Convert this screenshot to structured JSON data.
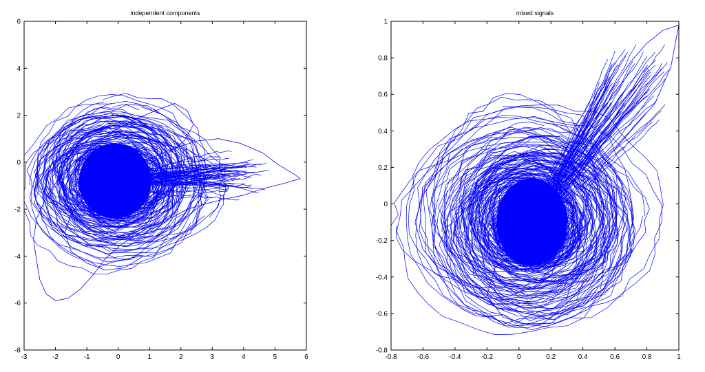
{
  "chart_data": [
    {
      "type": "line",
      "title": "independent components",
      "xlabel": "",
      "ylabel": "",
      "xlim": [
        -3,
        6
      ],
      "ylim": [
        -8,
        6
      ],
      "xticks": [
        -3,
        -2,
        -1,
        0,
        1,
        2,
        3,
        4,
        5,
        6
      ],
      "yticks": [
        -8,
        -6,
        -4,
        -2,
        0,
        2,
        4,
        6
      ],
      "grid": false,
      "series_color": "#0000ff",
      "series": [
        {
          "values_note": "dense trajectory",
          "x": [
            -0.2,
            0.4,
            1.1,
            1.8,
            2.5,
            3.2,
            3.9,
            4.6,
            5.1,
            5.6,
            5.8,
            5.3,
            4.7,
            4.0,
            3.3,
            2.7,
            2.2,
            1.8,
            1.2,
            0.7,
            0.1,
            -0.4,
            -0.8,
            -1.2,
            -1.6,
            -2.0,
            -2.3,
            -2.5,
            -2.6,
            -2.7,
            -2.6,
            -2.3,
            -1.9,
            -1.4,
            -0.8,
            -0.2,
            0.5,
            1.2,
            1.8,
            2.2,
            2.4,
            2.1,
            1.5,
            0.8,
            0.0,
            -0.6,
            -1.1,
            -1.5,
            -1.7,
            -1.5,
            -1.0,
            -0.4,
            0.2,
            0.8
          ],
          "y": [
            -0.7,
            -0.3,
            0.2,
            0.6,
            0.9,
            1.0,
            0.8,
            0.4,
            -0.1,
            -0.5,
            -0.7,
            -0.9,
            -1.1,
            -1.4,
            -1.6,
            -1.8,
            -2.0,
            -2.3,
            -2.6,
            -3.0,
            -3.5,
            -4.1,
            -4.8,
            -5.4,
            -5.8,
            -5.9,
            -5.6,
            -5.0,
            -4.2,
            -3.3,
            -2.4,
            -1.5,
            -0.7,
            0.0,
            0.7,
            1.3,
            1.8,
            2.2,
            2.5,
            2.2,
            1.6,
            0.9,
            0.3,
            -0.2,
            -0.6,
            -1.0,
            -1.5,
            -2.2,
            -3.0,
            -3.8,
            -4.3,
            -4.6,
            -4.5,
            -4.0
          ]
        }
      ]
    },
    {
      "type": "line",
      "title": "mixed signals",
      "xlabel": "",
      "ylabel": "",
      "xlim": [
        -0.8,
        1
      ],
      "ylim": [
        -0.8,
        1
      ],
      "xticks": [
        -0.8,
        -0.6,
        -0.4,
        -0.2,
        0,
        0.2,
        0.4,
        0.6,
        0.8,
        1
      ],
      "yticks": [
        -0.8,
        -0.6,
        -0.4,
        -0.2,
        0,
        0.2,
        0.4,
        0.6,
        0.8,
        1
      ],
      "grid": false,
      "series_color": "#0000ff",
      "series": [
        {
          "values_note": "dense trajectory",
          "x": [
            0.1,
            0.2,
            0.3,
            0.4,
            0.5,
            0.6,
            0.7,
            0.8,
            0.9,
            1.0,
            0.95,
            0.85,
            0.7,
            0.55,
            0.45,
            0.4,
            0.35,
            0.3,
            0.2,
            0.1,
            -0.05,
            -0.2,
            -0.35,
            -0.5,
            -0.6,
            -0.65,
            -0.6,
            -0.5,
            -0.35,
            -0.2,
            -0.05,
            0.1,
            0.25,
            0.4,
            0.5,
            0.55,
            0.5,
            0.35,
            0.2,
            0.05,
            -0.1,
            -0.2,
            -0.15,
            0.0,
            0.15,
            0.3
          ],
          "y": [
            -0.1,
            0.05,
            0.2,
            0.35,
            0.5,
            0.65,
            0.78,
            0.88,
            0.95,
            0.98,
            0.75,
            0.55,
            0.4,
            0.25,
            0.1,
            -0.05,
            -0.15,
            -0.25,
            -0.35,
            -0.45,
            -0.5,
            -0.48,
            -0.42,
            -0.35,
            -0.25,
            -0.1,
            0.05,
            0.18,
            0.3,
            0.38,
            0.42,
            0.38,
            0.28,
            0.15,
            0.0,
            -0.15,
            -0.32,
            -0.5,
            -0.62,
            -0.66,
            -0.62,
            -0.5,
            -0.35,
            -0.25,
            -0.2,
            -0.15
          ]
        }
      ]
    }
  ]
}
